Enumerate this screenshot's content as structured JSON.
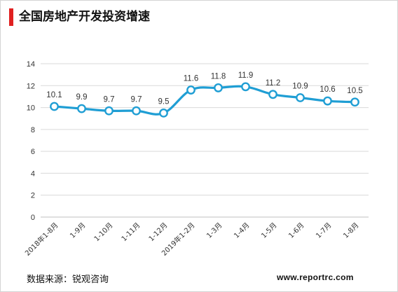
{
  "title": "全国房地产开发投资增速",
  "source": "数据来源：锐观咨询",
  "website": "www.reportrc.com",
  "colors": {
    "accent": "#e02020",
    "line": "#1f9ed4",
    "grid": "#d9d9d9"
  },
  "chart_data": {
    "type": "line",
    "categories": [
      "2018年1-8月",
      "1-9月",
      "1-10月",
      "1-11月",
      "1-12月",
      "2019年1-2月",
      "1-3月",
      "1-4月",
      "1-5月",
      "1-6月",
      "1-7月",
      "1-8月"
    ],
    "series": [
      {
        "values": [
          10.1,
          9.9,
          9.7,
          9.7,
          9.5,
          11.6,
          11.8,
          11.9,
          11.2,
          10.9,
          10.6,
          10.5
        ]
      }
    ],
    "data_labels": [
      "10.1",
      "9.9",
      "9.7",
      "9.7",
      "9.5",
      "11.6",
      "11.8",
      "11.9",
      "11.2",
      "10.9",
      "10.6",
      "10.5"
    ],
    "y_ticks": [
      "0",
      "2",
      "4",
      "6",
      "8",
      "10",
      "12",
      "14"
    ],
    "ylim": [
      0,
      14
    ],
    "grid": true,
    "smooth": true,
    "markers": "hollow-circle"
  }
}
